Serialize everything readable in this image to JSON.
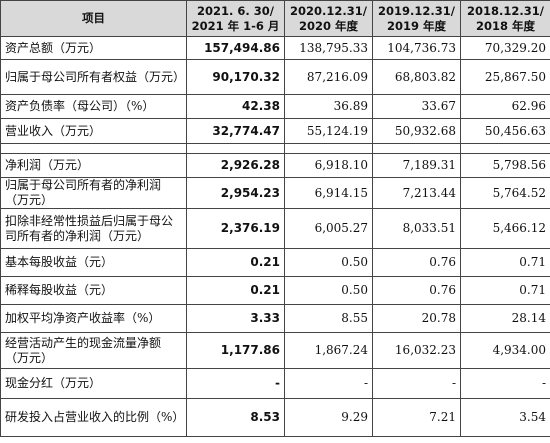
{
  "table": {
    "header": [
      [
        "项目"
      ],
      [
        "2021. 6. 30/",
        "2021 年 1-6 月"
      ],
      [
        "2020.12.31/",
        "2020 年度"
      ],
      [
        "2019.12.31/",
        "2019 年度"
      ],
      [
        "2018.12.31/",
        "2018 年度"
      ]
    ],
    "rows": [
      [
        "资产总额（万元）",
        "157,494.86",
        "138,795.33",
        "104,736.73",
        "70,329.20"
      ],
      [
        "归属于母公司所有者权益（万元）",
        "90,170.32",
        "87,216.09",
        "68,803.82",
        "25,867.50"
      ],
      [
        "资产负债率（母公司）（%）",
        "42.38",
        "36.89",
        "33.67",
        "62.96"
      ],
      [
        "营业收入（万元）",
        "32,774.47",
        "55,124.19",
        "50,932.68",
        "50,456.63"
      ],
      [
        "净利润（万元）",
        "2,926.28",
        "6,918.10",
        "7,189.31",
        "5,798.56"
      ],
      [
        "归属于母公司所有者的净利润（万元）",
        "2,954.23",
        "6,914.15",
        "7,213.44",
        "5,764.52"
      ],
      [
        "扣除非经常性损益后归属于母公司所有者的净利润（万元）",
        "2,376.19",
        "6,005.27",
        "8,033.51",
        "5,466.12"
      ],
      [
        "基本每股收益（元）",
        "0.21",
        "0.50",
        "0.76",
        "0.71"
      ],
      [
        "稀释每股收益（元）",
        "0.21",
        "0.50",
        "0.76",
        "0.71"
      ],
      [
        "加权平均净资产收益率（%）",
        "3.33",
        "8.55",
        "20.78",
        "28.14"
      ],
      [
        "经营活动产生的现金流量净额（万元）",
        "1,177.86",
        "1,867.24",
        "16,032.23",
        "4,934.00"
      ],
      [
        "现金分红（万元）",
        "-",
        "-",
        "-",
        "-"
      ],
      [
        "研发投入占营业收入的比例（%）",
        "8.53",
        "9.29",
        "7.21",
        "3.54"
      ]
    ]
  }
}
